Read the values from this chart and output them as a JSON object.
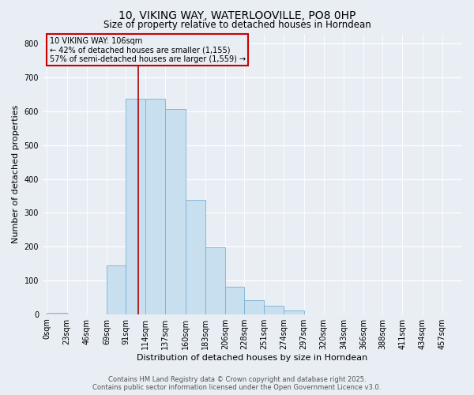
{
  "title": "10, VIKING WAY, WATERLOOVILLE, PO8 0HP",
  "subtitle": "Size of property relative to detached houses in Horndean",
  "xlabel": "Distribution of detached houses by size in Horndean",
  "ylabel": "Number of detached properties",
  "bar_labels": [
    "0sqm",
    "23sqm",
    "46sqm",
    "69sqm",
    "91sqm",
    "114sqm",
    "137sqm",
    "160sqm",
    "183sqm",
    "206sqm",
    "228sqm",
    "251sqm",
    "274sqm",
    "297sqm",
    "320sqm",
    "343sqm",
    "366sqm",
    "388sqm",
    "411sqm",
    "434sqm",
    "457sqm"
  ],
  "bar_values": [
    3,
    0,
    0,
    145,
    638,
    638,
    608,
    338,
    198,
    82,
    42,
    25,
    12,
    0,
    0,
    0,
    0,
    0,
    0,
    0,
    0
  ],
  "bin_edges": [
    0,
    23,
    46,
    69,
    91,
    114,
    137,
    160,
    183,
    206,
    228,
    251,
    274,
    297,
    320,
    343,
    366,
    388,
    411,
    434,
    457
  ],
  "bin_width": 23,
  "bar_color": "#c8dff0",
  "bar_edge_color": "#7ab0d4",
  "property_line_x": 106,
  "property_line_color": "#aa0000",
  "annotation_title": "10 VIKING WAY: 106sqm",
  "annotation_line1": "← 42% of detached houses are smaller (1,155)",
  "annotation_line2": "57% of semi-detached houses are larger (1,559) →",
  "annotation_box_color": "#cc0000",
  "ylim": [
    0,
    830
  ],
  "yticks": [
    0,
    100,
    200,
    300,
    400,
    500,
    600,
    700,
    800
  ],
  "footer1": "Contains HM Land Registry data © Crown copyright and database right 2025.",
  "footer2": "Contains public sector information licensed under the Open Government Licence v3.0.",
  "bg_color": "#e8eef4",
  "grid_color": "#ffffff",
  "title_fontsize": 10,
  "subtitle_fontsize": 8.5,
  "axis_label_fontsize": 8,
  "tick_fontsize": 7,
  "annotation_fontsize": 7,
  "footer_fontsize": 6
}
